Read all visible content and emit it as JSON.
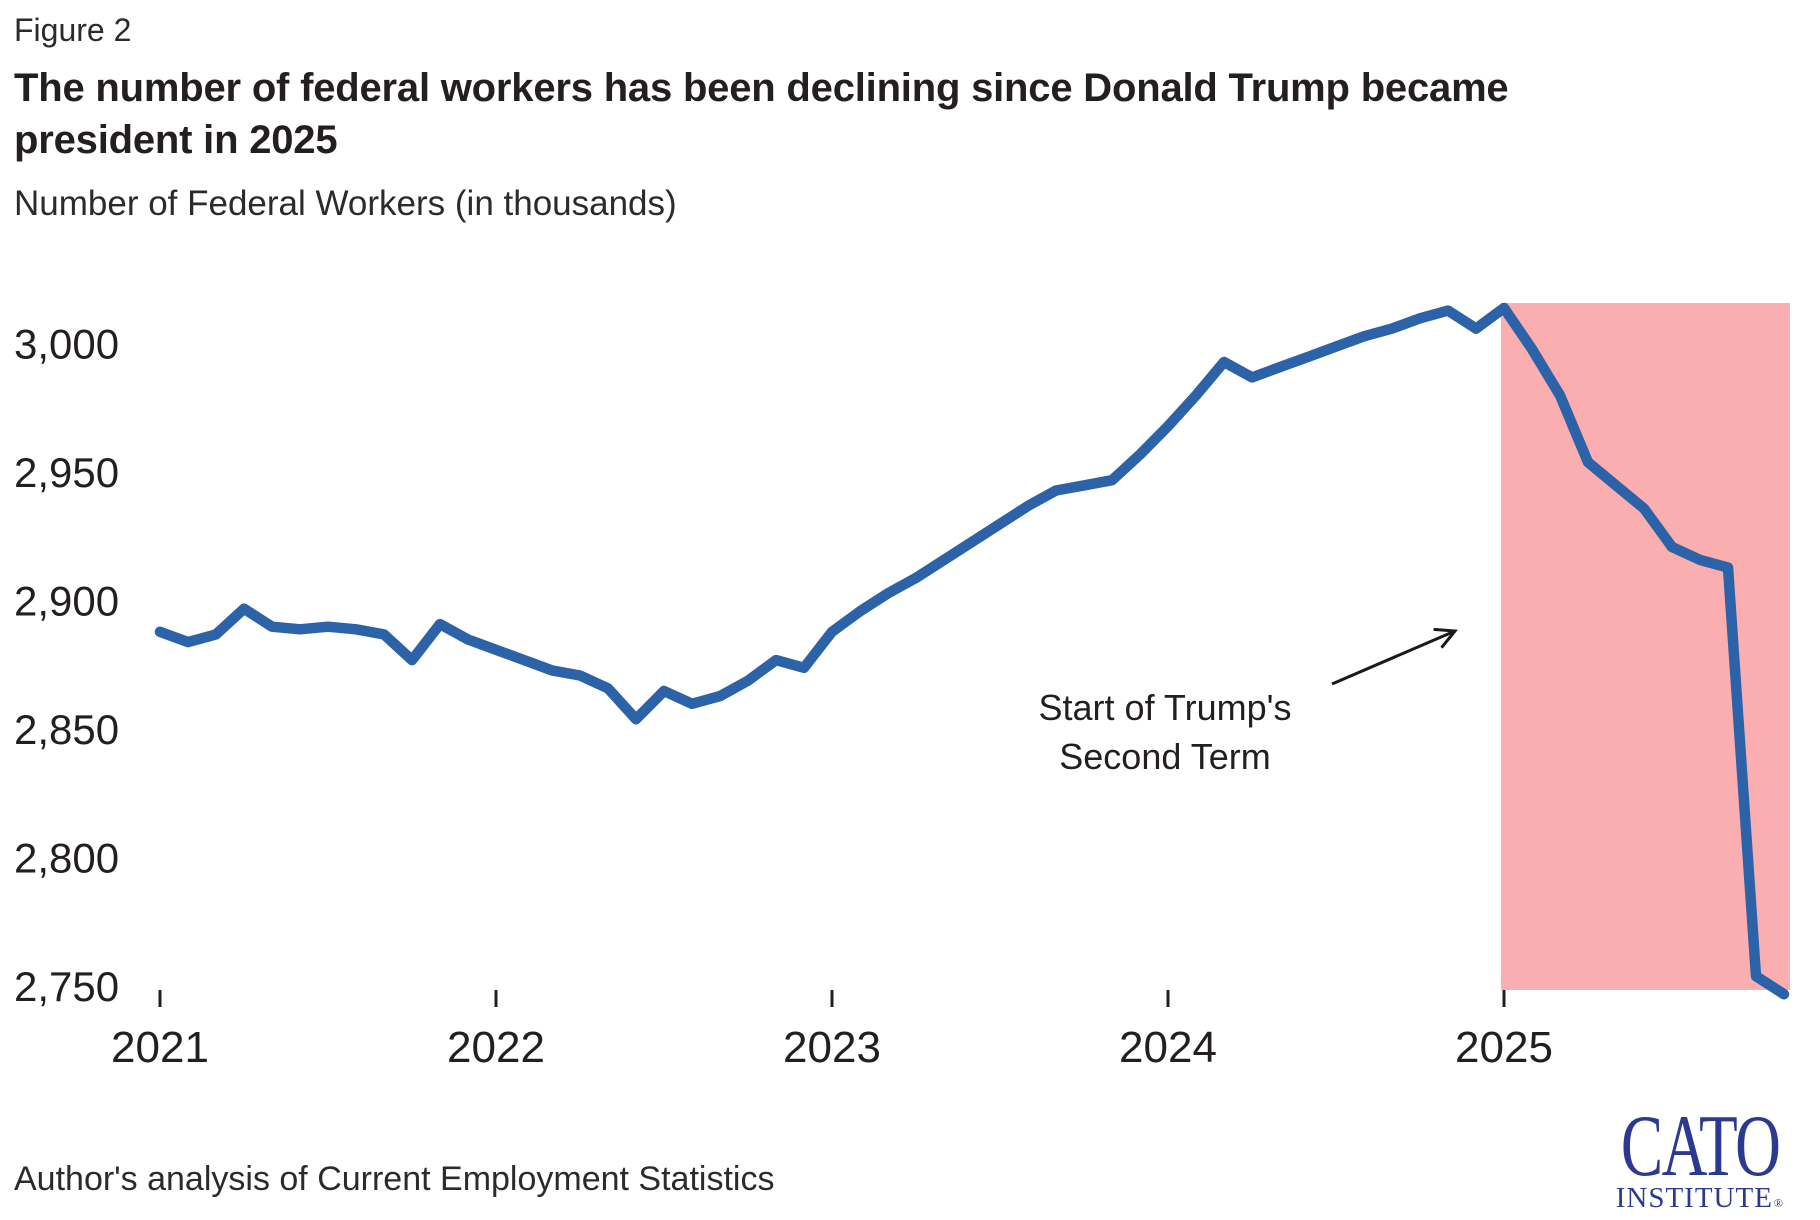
{
  "header": {
    "figure_label": "Figure 2"
  },
  "footer": {
    "source": "Author's analysis of Current Employment Statistics"
  },
  "logo": {
    "name": "CATO",
    "sub": "INSTITUTE",
    "registered": "®"
  },
  "colors": {
    "line": "#2B62A8",
    "shade": "#FBAEB0",
    "logo_blue": "#2B3990",
    "text": "#231F20"
  },
  "chart_data": {
    "type": "line",
    "title": "The number of federal workers has been declining since Donald Trump became president in 2025",
    "ylabel": "Number of Federal Workers (in thousands)",
    "xlabel": "",
    "grid": false,
    "legend": "none",
    "ylim": [
      2740,
      3020
    ],
    "y_ticks": [
      {
        "value": 3000,
        "label": "3,000"
      },
      {
        "value": 2950,
        "label": "2,950"
      },
      {
        "value": 2900,
        "label": "2,900"
      },
      {
        "value": 2850,
        "label": "2,850"
      },
      {
        "value": 2800,
        "label": "2,800"
      },
      {
        "value": 2750,
        "label": "2,750"
      }
    ],
    "x_ticks": [
      {
        "month_index": 0,
        "label": "2021"
      },
      {
        "month_index": 12,
        "label": "2022"
      },
      {
        "month_index": 24,
        "label": "2023"
      },
      {
        "month_index": 36,
        "label": "2024"
      },
      {
        "month_index": 48,
        "label": "2025"
      }
    ],
    "series": [
      {
        "name": "Federal workers (thousands)",
        "x": [
          "2021-01",
          "2021-02",
          "2021-03",
          "2021-04",
          "2021-05",
          "2021-06",
          "2021-07",
          "2021-08",
          "2021-09",
          "2021-10",
          "2021-11",
          "2021-12",
          "2022-01",
          "2022-02",
          "2022-03",
          "2022-04",
          "2022-05",
          "2022-06",
          "2022-07",
          "2022-08",
          "2022-09",
          "2022-10",
          "2022-11",
          "2022-12",
          "2023-01",
          "2023-02",
          "2023-03",
          "2023-04",
          "2023-05",
          "2023-06",
          "2023-07",
          "2023-08",
          "2023-09",
          "2023-10",
          "2023-11",
          "2023-12",
          "2024-01",
          "2024-02",
          "2024-03",
          "2024-04",
          "2024-05",
          "2024-06",
          "2024-07",
          "2024-08",
          "2024-09",
          "2024-10",
          "2024-11",
          "2024-12",
          "2025-01",
          "2025-02",
          "2025-03",
          "2025-04",
          "2025-05",
          "2025-06",
          "2025-07",
          "2025-08",
          "2025-09",
          "2025-10",
          "2025-11"
        ],
        "values": [
          2888,
          2884,
          2887,
          2897,
          2890,
          2889,
          2890,
          2889,
          2887,
          2877,
          2891,
          2885,
          2881,
          2877,
          2873,
          2871,
          2866,
          2854,
          2865,
          2860,
          2863,
          2869,
          2877,
          2874,
          2888,
          2896,
          2903,
          2909,
          2916,
          2923,
          2930,
          2937,
          2943,
          2945,
          2947,
          2957,
          2968,
          2980,
          2993,
          2987,
          2991,
          2995,
          2999,
          3003,
          3006,
          3010,
          3013,
          3006,
          3014,
          2998,
          2980,
          2954,
          2945,
          2936,
          2921,
          2916,
          2913,
          2754,
          2747
        ]
      }
    ],
    "shaded_region": {
      "start_month": "2025-01",
      "start_month_index": 48,
      "meaning": "Trump's second term"
    },
    "annotations": [
      {
        "text_line1": "Start of Trump's",
        "text_line2": "Second Term",
        "points_to": "2025-01"
      }
    ]
  }
}
